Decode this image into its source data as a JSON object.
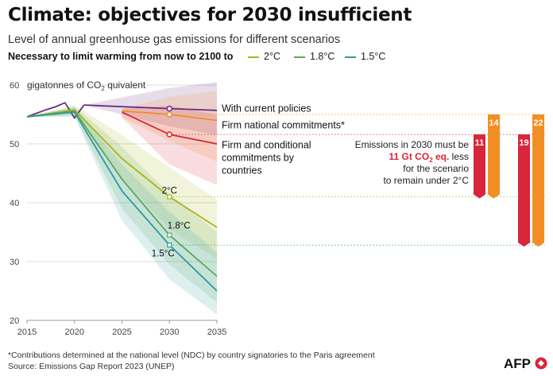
{
  "title": "Climate: objectives for 2030 insufficient",
  "subtitle": "Level of annual greenhouse gas emissions for different scenarios",
  "legend_title": "Necessary to limit warming from now to 2100 to",
  "colors": {
    "c2": "#a8b51d",
    "c18": "#5ba85a",
    "c15": "#2e9a9a",
    "current": "#6b2d7e",
    "firm": "#f18f24",
    "firmcond": "#d8263a",
    "axis": "#666666",
    "grid": "#dddddd",
    "highlight": "#d8263a"
  },
  "footnote": "*Contributions determined at the national level (NDC) by country signatories to the Paris agreement",
  "source": "Source: Emissions Gap Report 2023 (UNEP)",
  "logo_text": "AFP",
  "annotation": {
    "line1": "Emissions in 2030 must be",
    "value": "11 Gt CO",
    "value_sub": "2",
    "value_suffix": " eq.",
    "line2_rest": " less",
    "line3": "for the scenario",
    "line4": "to remain under 2°C"
  },
  "chart_data": {
    "type": "line",
    "title": "Climate: objectives for 2030 insufficient",
    "ylabel_text": "gigatonnes of CO",
    "ylabel_sub": "2",
    "ylabel_suffix": " quivalent",
    "xlim": [
      2015,
      2035
    ],
    "ylim": [
      20,
      60
    ],
    "xticks": [
      2015,
      2020,
      2025,
      2030,
      2035
    ],
    "yticks": [
      20,
      30,
      40,
      50,
      60
    ],
    "historical": {
      "x": [
        2015,
        2016,
        2017,
        2018,
        2019,
        2020,
        2021
      ],
      "y": [
        54.6,
        55.2,
        55.8,
        56.3,
        57.0,
        54.4,
        56.6
      ]
    },
    "series": [
      {
        "name": "With current policies",
        "color_key": "current",
        "x": [
          2021,
          2030,
          2035
        ],
        "y": [
          56.6,
          56.0,
          55.7
        ],
        "band_upper": [
          56.6,
          59.5,
          60.5
        ],
        "band_lower": [
          56.6,
          53.0,
          51.5
        ],
        "band_x": [
          2021,
          2030,
          2035
        ],
        "marker_2030": 56.0
      },
      {
        "name": "Firm national commitments*",
        "color_key": "firm",
        "x": [
          2025,
          2030,
          2035
        ],
        "y": [
          55.6,
          55.0,
          54.0
        ],
        "band_upper": [
          56.0,
          58.0,
          59.0
        ],
        "band_lower": [
          54.5,
          50.5,
          47.0
        ],
        "band_x": [
          2025,
          2030,
          2035
        ],
        "marker_2030": 55.0
      },
      {
        "name": "Firm and conditional commitments by countries",
        "label_lines": [
          "Firm and conditional",
          "commitments by",
          "countries"
        ],
        "color_key": "firmcond",
        "x": [
          2025,
          2030,
          2035
        ],
        "y": [
          55.4,
          51.6,
          50.0
        ],
        "band_upper": [
          56.0,
          56.5,
          55.0
        ],
        "band_lower": [
          54.5,
          46.5,
          43.0
        ],
        "band_x": [
          2025,
          2030,
          2035
        ],
        "marker_2030": 51.6
      },
      {
        "name": "2°C",
        "color_key": "c2",
        "x": [
          2015,
          2020,
          2025,
          2030,
          2035
        ],
        "y": [
          54.6,
          55.8,
          47.5,
          41.0,
          35.8
        ],
        "band_upper": [
          54.6,
          56.6,
          51.5,
          46.0,
          40.5
        ],
        "band_lower": [
          54.6,
          55.0,
          44.0,
          35.5,
          30.5
        ],
        "band_x": [
          2015,
          2020,
          2025,
          2030,
          2035
        ],
        "marker_2030": 41.0
      },
      {
        "name": "1.8°C",
        "color_key": "c18",
        "x": [
          2015,
          2020,
          2025,
          2030,
          2035
        ],
        "y": [
          54.6,
          55.6,
          44.0,
          34.5,
          27.5
        ],
        "band_upper": [
          54.6,
          56.4,
          49.5,
          41.5,
          35.0
        ],
        "band_lower": [
          54.6,
          54.8,
          39.0,
          29.5,
          23.0
        ],
        "band_x": [
          2015,
          2020,
          2025,
          2030,
          2035
        ],
        "marker_2030": 34.5
      },
      {
        "name": "1.5°C",
        "color_key": "c15",
        "x": [
          2015,
          2020,
          2025,
          2030,
          2035
        ],
        "y": [
          54.6,
          55.4,
          42.0,
          32.8,
          25.0
        ],
        "band_upper": [
          54.6,
          56.2,
          46.5,
          38.5,
          31.5
        ],
        "band_lower": [
          54.6,
          54.6,
          37.0,
          27.0,
          21.0
        ],
        "band_x": [
          2015,
          2020,
          2025,
          2030,
          2035
        ],
        "marker_2030": 32.8
      }
    ],
    "scenario_labels": {
      "c2": "2°C",
      "c18": "1.8°C",
      "c15": "1.5°C"
    },
    "gap_bars": [
      {
        "label": "11",
        "value": 11,
        "top": 51.6,
        "bottom": 41.0,
        "color_key": "firmcond",
        "group": 1
      },
      {
        "label": "14",
        "value": 14,
        "top": 55.0,
        "bottom": 41.0,
        "color_key": "firm",
        "group": 1
      },
      {
        "label": "19",
        "value": 19,
        "top": 51.6,
        "bottom": 32.8,
        "color_key": "firmcond",
        "group": 2
      },
      {
        "label": "22",
        "value": 22,
        "top": 55.0,
        "bottom": 32.8,
        "color_key": "firm",
        "group": 2
      }
    ]
  }
}
